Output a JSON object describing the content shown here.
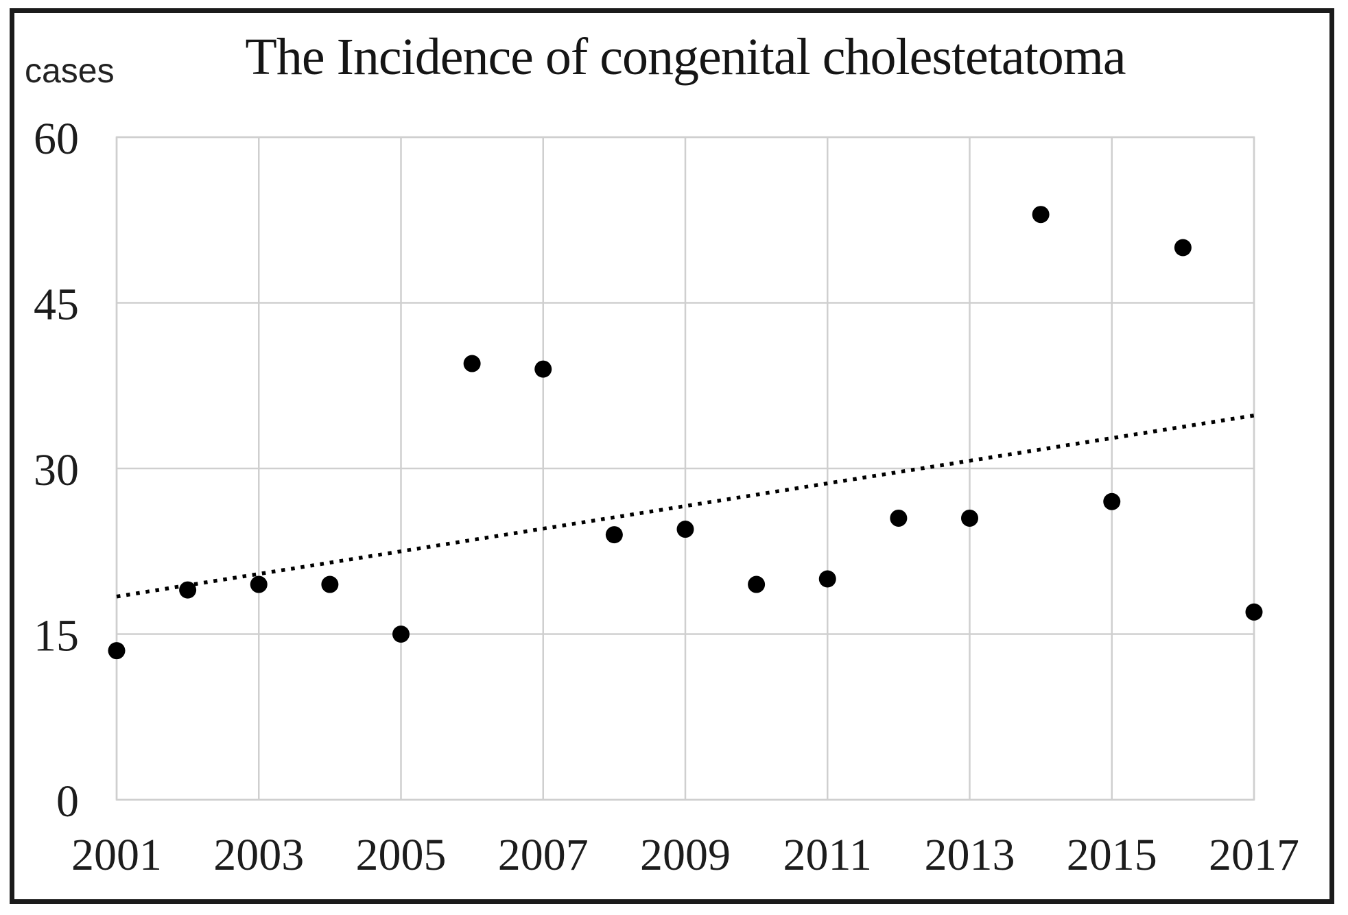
{
  "figure": {
    "background": "#ffffff",
    "frame_color": "#1b1b1b",
    "text_color": "#1c1c1c",
    "grid_color": "#cfcfcf",
    "point_color": "#000000"
  },
  "chart_data": {
    "type": "scatter",
    "title": "The Incidence of congenital cholestetatoma",
    "ylabel": "cases",
    "xlabel": "",
    "x": [
      2001,
      2002,
      2003,
      2004,
      2005,
      2006,
      2007,
      2008,
      2009,
      2010,
      2011,
      2012,
      2013,
      2014,
      2015,
      2016,
      2017
    ],
    "values": [
      13.5,
      19,
      19.5,
      19.5,
      15,
      39.5,
      39,
      24,
      24.5,
      19.5,
      20,
      25.5,
      25.5,
      53,
      27,
      50,
      17
    ],
    "xlim": [
      2001,
      2017
    ],
    "ylim": [
      0,
      60
    ],
    "x_tick_labels": [
      "2001",
      "2003",
      "2005",
      "2007",
      "2009",
      "2011",
      "2013",
      "2015",
      "2017"
    ],
    "y_ticks": [
      0,
      15,
      30,
      45,
      60
    ],
    "grid": "on",
    "legend": "none",
    "marker": "filled-black-circle",
    "trendline": {
      "style": "dotted",
      "color": "#000000",
      "x_start": 2001,
      "y_start": 18.4,
      "x_end": 2017,
      "y_end": 34.8
    }
  }
}
